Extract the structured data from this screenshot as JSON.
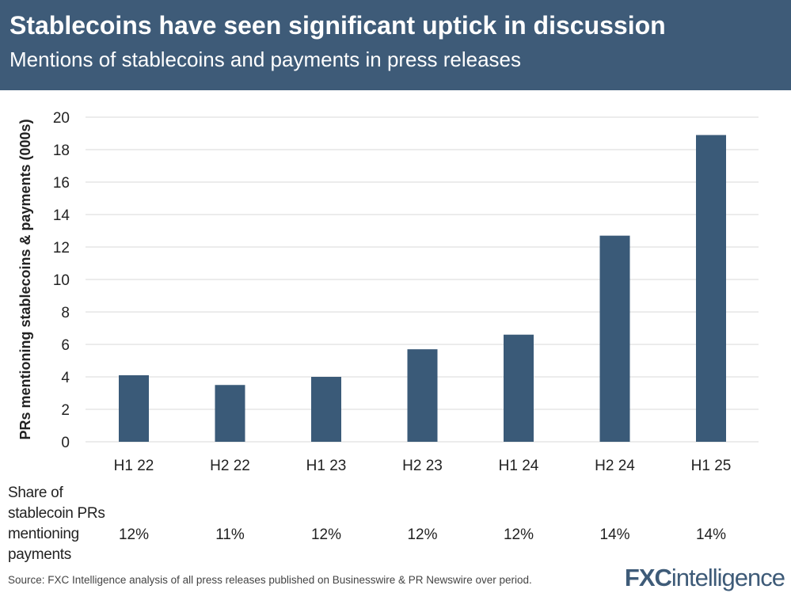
{
  "header": {
    "title": "Stablecoins have seen significant uptick in discussion",
    "subtitle": "Mentions of stablecoins and payments in press releases"
  },
  "chart_data": {
    "type": "bar",
    "title": "Stablecoins have seen significant uptick in discussion",
    "subtitle": "Mentions of stablecoins and payments in press releases",
    "categories": [
      "H1 22",
      "H2 22",
      "H1 23",
      "H2 23",
      "H1 24",
      "H2 24",
      "H1 25"
    ],
    "values": [
      4.1,
      3.5,
      4.0,
      5.7,
      6.6,
      12.7,
      18.9
    ],
    "xlabel": "",
    "ylabel": "PRs mentioning stablecoins & payments (000s)",
    "ylim": [
      0,
      20
    ],
    "yticks": [
      0,
      2,
      4,
      6,
      8,
      10,
      12,
      14,
      16,
      18,
      20
    ],
    "grid": true,
    "bar_color": "#3a5a78",
    "share_label": "Share of stablecoin PRs mentioning payments",
    "share_values": [
      "12%",
      "11%",
      "12%",
      "12%",
      "12%",
      "14%",
      "14%"
    ]
  },
  "footer": {
    "source": "Source: FXC Intelligence analysis of all press releases published on Businesswire & PR Newswire over period.",
    "logo_text": "FXCintelligence"
  }
}
